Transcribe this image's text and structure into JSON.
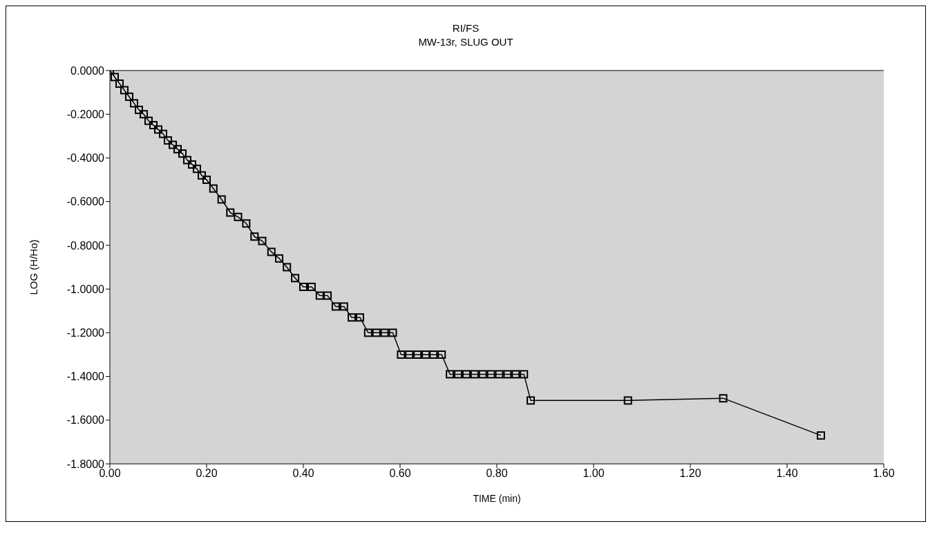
{
  "chart_data": {
    "type": "line",
    "title": "RI/FS",
    "subtitle": "MW-13r, SLUG OUT",
    "xlabel": "TIME (min)",
    "ylabel": "LOG (H/Ho)",
    "x": [
      0,
      0.01,
      0.02,
      0.03,
      0.04,
      0.05,
      0.06,
      0.07,
      0.08,
      0.09,
      0.1,
      0.11,
      0.12,
      0.13,
      0.14,
      0.15,
      0.16,
      0.17,
      0.18,
      0.19,
      0.2,
      0.214,
      0.231,
      0.249,
      0.265,
      0.282,
      0.299,
      0.315,
      0.334,
      0.35,
      0.366,
      0.383,
      0.4,
      0.417,
      0.434,
      0.45,
      0.467,
      0.484,
      0.5,
      0.517,
      0.534,
      0.551,
      0.568,
      0.585,
      0.602,
      0.619,
      0.636,
      0.653,
      0.669,
      0.686,
      0.703,
      0.72,
      0.737,
      0.754,
      0.771,
      0.788,
      0.805,
      0.822,
      0.839,
      0.856,
      0.87,
      1.071,
      1.268,
      1.47
    ],
    "series": [
      {
        "color": "#000000",
        "values": [
          0,
          -0.03,
          -0.06,
          -0.09,
          -0.12,
          -0.15,
          -0.18,
          -0.2,
          -0.23,
          -0.25,
          -0.27,
          -0.29,
          -0.32,
          -0.34,
          -0.36,
          -0.38,
          -0.41,
          -0.43,
          -0.45,
          -0.48,
          -0.5,
          -0.54,
          -0.59,
          -0.65,
          -0.67,
          -0.7,
          -0.76,
          -0.78,
          -0.83,
          -0.86,
          -0.9,
          -0.95,
          -0.99,
          -0.99,
          -1.03,
          -1.03,
          -1.08,
          -1.08,
          -1.13,
          -1.13,
          -1.2,
          -1.2,
          -1.2,
          -1.2,
          -1.3,
          -1.3,
          -1.3,
          -1.3,
          -1.3,
          -1.3,
          -1.39,
          -1.39,
          -1.39,
          -1.39,
          -1.39,
          -1.39,
          -1.39,
          -1.39,
          -1.39,
          -1.39,
          -1.51,
          -1.51,
          -1.5,
          -1.67
        ]
      }
    ],
    "xlim": [
      0,
      1.6
    ],
    "xticks": [
      {
        "value": 0,
        "label": "0.00"
      },
      {
        "value": 0.2,
        "label": "0.20"
      },
      {
        "value": 0.4,
        "label": "0.40"
      },
      {
        "value": 0.6,
        "label": "0.60"
      },
      {
        "value": 0.8,
        "label": "0.80"
      },
      {
        "value": 1,
        "label": "1.00"
      },
      {
        "value": 1.2,
        "label": "1.20"
      },
      {
        "value": 1.4,
        "label": "1.40"
      },
      {
        "value": 1.6,
        "label": "1.60"
      }
    ],
    "ylim": [
      -1.8,
      0
    ],
    "yticks": [
      {
        "value": -1.8,
        "label": "-1.8000"
      },
      {
        "value": -1.6,
        "label": "-1.6000"
      },
      {
        "value": -1.4,
        "label": "-1.4000"
      },
      {
        "value": -1.2,
        "label": "-1.2000"
      },
      {
        "value": -1,
        "label": "-1.0000"
      },
      {
        "value": -0.8,
        "label": "-0.8000"
      },
      {
        "value": -0.6,
        "label": "-0.6000"
      },
      {
        "value": -0.4,
        "label": "-0.4000"
      },
      {
        "value": -0.2,
        "label": "-0.2000"
      },
      {
        "value": 0,
        "label": "0.0000"
      }
    ],
    "grid": false,
    "legend": false,
    "marker": "square",
    "line_style": "solid"
  }
}
